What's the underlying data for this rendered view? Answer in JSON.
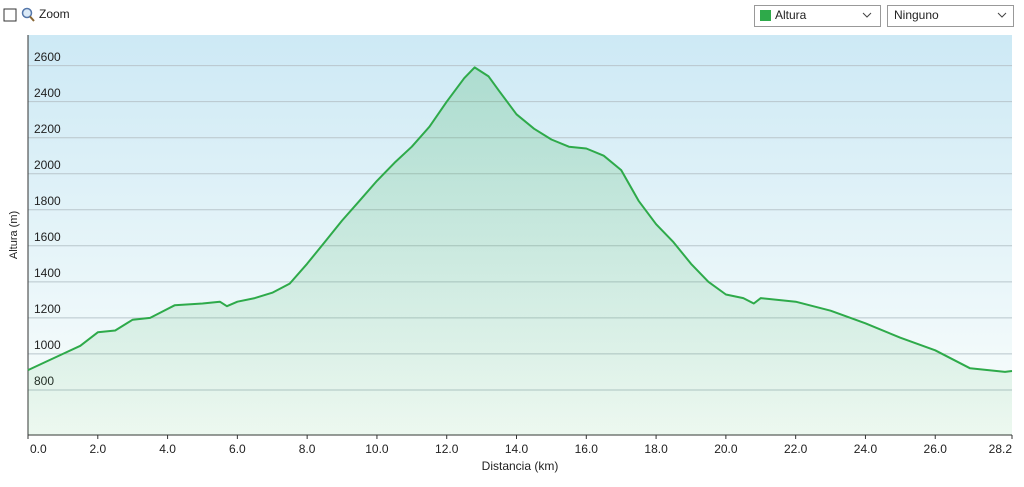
{
  "toolbar": {
    "zoom_label": "Zoom",
    "overlay_select": "Ninguno"
  },
  "chart_data": {
    "type": "area",
    "x_label": "Distancia  (km)",
    "y_label": "Altura (m)",
    "x": [
      0,
      0.5,
      1.0,
      1.5,
      2.0,
      2.5,
      3.0,
      3.5,
      3.8,
      4.2,
      5.0,
      5.5,
      5.7,
      6.0,
      6.5,
      7.0,
      7.5,
      8.0,
      8.5,
      9.0,
      9.5,
      10.0,
      10.5,
      11.0,
      11.5,
      12.0,
      12.5,
      12.8,
      13.2,
      13.5,
      14.0,
      14.5,
      15.0,
      15.5,
      16.0,
      16.5,
      17.0,
      17.5,
      18.0,
      18.5,
      19.0,
      19.5,
      20.0,
      20.5,
      20.8,
      21.0,
      22.0,
      23.0,
      24.0,
      25.0,
      26.0,
      27.0,
      28.0,
      28.2
    ],
    "series": [
      {
        "name": "Altura",
        "color": "#2eaa4a",
        "values": [
          910,
          955,
          1000,
          1045,
          1120,
          1130,
          1190,
          1200,
          1230,
          1270,
          1280,
          1290,
          1265,
          1290,
          1310,
          1340,
          1390,
          1500,
          1620,
          1740,
          1850,
          1960,
          2060,
          2150,
          2260,
          2400,
          2530,
          2590,
          2540,
          2460,
          2330,
          2250,
          2190,
          2150,
          2140,
          2100,
          2020,
          1850,
          1720,
          1620,
          1500,
          1400,
          1330,
          1310,
          1280,
          1310,
          1290,
          1240,
          1170,
          1090,
          1020,
          920,
          900,
          905
        ]
      }
    ],
    "xlim": [
      0,
      28.2
    ],
    "ylim": [
      550,
      2770
    ],
    "xticks": [
      {
        "value": 0,
        "label": "0.0"
      },
      {
        "value": 2,
        "label": "2.0"
      },
      {
        "value": 4,
        "label": "4.0"
      },
      {
        "value": 6,
        "label": "6.0"
      },
      {
        "value": 8,
        "label": "8.0"
      },
      {
        "value": 10,
        "label": "10.0"
      },
      {
        "value": 12,
        "label": "12.0"
      },
      {
        "value": 14,
        "label": "14.0"
      },
      {
        "value": 16,
        "label": "16.0"
      },
      {
        "value": 18,
        "label": "18.0"
      },
      {
        "value": 20,
        "label": "20.0"
      },
      {
        "value": 22,
        "label": "22.0"
      },
      {
        "value": 24,
        "label": "24.0"
      },
      {
        "value": 26,
        "label": "26.0"
      },
      28.2
    ],
    "yticks": [
      800,
      1000,
      1200,
      1400,
      1600,
      1800,
      2000,
      2200,
      2400,
      2600
    ],
    "grid": true
  }
}
